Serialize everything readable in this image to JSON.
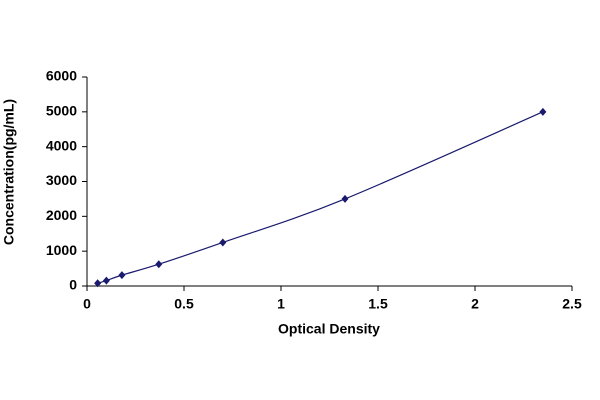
{
  "chart_data": {
    "type": "scatter",
    "x_label": "Optical Density",
    "y_label": "Concentration(pg/mL)",
    "x": [
      0.055,
      0.1,
      0.18,
      0.37,
      0.7,
      1.33,
      2.35
    ],
    "values": [
      78,
      156,
      312,
      625,
      1250,
      2500,
      5000
    ],
    "color": "#1a1a6e",
    "line": true,
    "xlim": [
      0,
      2.5
    ],
    "xticks": [
      0,
      0.5,
      1,
      1.5,
      2,
      2.5
    ],
    "ylim": [
      0,
      6000
    ],
    "yticks": [
      0,
      1000,
      2000,
      3000,
      4000,
      5000,
      6000
    ],
    "grid": false
  }
}
